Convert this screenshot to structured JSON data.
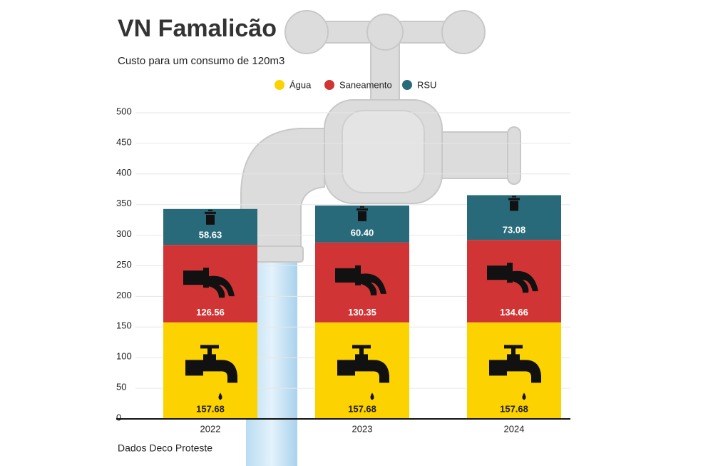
{
  "chart_data": {
    "type": "stacked_bar",
    "title": "VN Famalicão",
    "subtitle": "Custo para um consumo de 120m3",
    "categories": [
      "2022",
      "2023",
      "2024"
    ],
    "series": [
      {
        "name": "Água",
        "color": "#fcd200",
        "values": [
          157.68,
          157.68,
          157.68
        ],
        "value_labels": [
          "157.68",
          "157.68",
          "157.68"
        ]
      },
      {
        "name": "Saneamento",
        "color": "#d03434",
        "values": [
          126.56,
          130.35,
          134.66
        ],
        "value_labels": [
          "126.56",
          "130.35",
          "134.66"
        ]
      },
      {
        "name": "RSU",
        "color": "#286a7a",
        "values": [
          58.63,
          60.4,
          73.08
        ],
        "value_labels": [
          "58.63",
          "60.40",
          "73.08"
        ]
      }
    ],
    "ylim": [
      0,
      500
    ],
    "yticks": [
      0,
      50,
      100,
      150,
      200,
      250,
      300,
      350,
      400,
      450,
      500
    ],
    "grid": true,
    "legend": "top",
    "source": "Dados Deco Proteste"
  }
}
